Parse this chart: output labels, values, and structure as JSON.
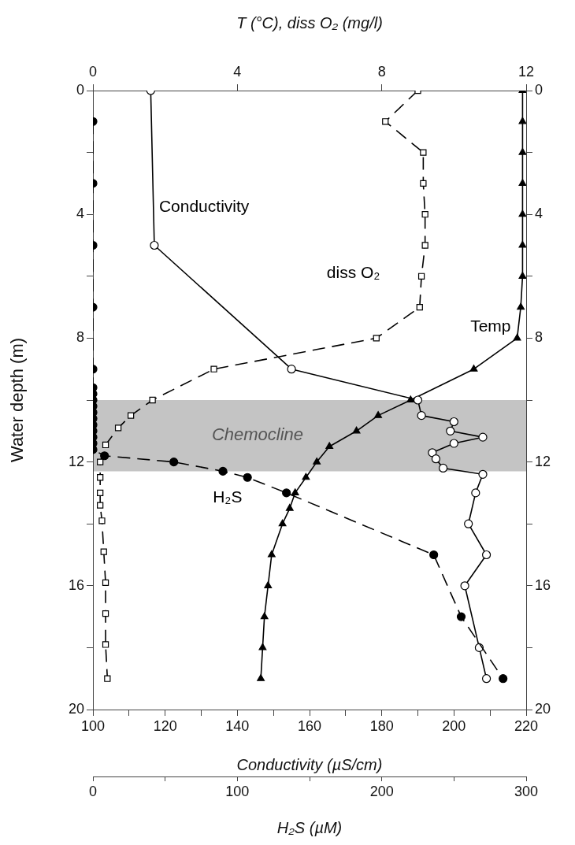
{
  "chart_data": [
    {
      "type": "line",
      "xlabel": "Conductivity (µS/cm)",
      "x2label": "T (°C), diss O₂ (mg/l)",
      "ylabel": "Water depth (m)",
      "xlim": [
        100,
        220
      ],
      "xticks": [
        100,
        {
          "value": 110,
          "label": null
        },
        120,
        {
          "value": 130,
          "label": null
        },
        140,
        {
          "value": 150,
          "label": null
        },
        160,
        {
          "value": 170,
          "label": null
        },
        180,
        {
          "value": 190,
          "label": null
        },
        200,
        {
          "value": 210,
          "label": null
        },
        220
      ],
      "x2lim": [
        0,
        12
      ],
      "x2ticks": [
        0,
        4,
        8,
        12
      ],
      "ylim": [
        20,
        0
      ],
      "yticks": [
        0,
        {
          "value": 2,
          "label": null
        },
        4,
        {
          "value": 6,
          "label": null
        },
        8,
        {
          "value": 10,
          "label": null
        },
        12,
        {
          "value": 14,
          "label": null
        },
        16,
        {
          "value": 18,
          "label": null
        },
        20
      ],
      "y2lim": [
        20,
        0
      ],
      "y2ticks": [
        0,
        {
          "value": 2,
          "label": null
        },
        4,
        {
          "value": 6,
          "label": null
        },
        8,
        {
          "value": 10,
          "label": null
        },
        12,
        {
          "value": 14,
          "label": null
        },
        16,
        {
          "value": 18,
          "label": null
        },
        20
      ],
      "grid": false,
      "legend": false,
      "bands": [
        {
          "axis": "y",
          "from": 10,
          "to": 12.3,
          "label": "Chemocline",
          "color": "#c4c4c4"
        }
      ],
      "series": [
        {
          "name": "Conductivity",
          "color": "#000000",
          "marker": "circle",
          "line_style": "solid",
          "x": [
            116,
            117,
            155,
            190,
            191,
            200,
            199,
            208,
            200,
            194,
            195,
            197,
            208,
            206,
            204,
            209,
            203,
            207,
            209
          ],
          "values": [
            0,
            5,
            9,
            10,
            10.5,
            10.7,
            11,
            11.2,
            11.4,
            11.7,
            11.9,
            12.2,
            12.4,
            13,
            14,
            15,
            16,
            18,
            19
          ]
        },
        {
          "name": "Temp",
          "color": "#000000",
          "marker": "triangle",
          "line_style": "solid",
          "axis": "x2",
          "x": [
            11.9,
            11.9,
            11.9,
            11.9,
            11.9,
            11.9,
            11.9,
            11.85,
            11.75,
            10.55,
            8.8,
            7.9,
            7.3,
            6.55,
            6.2,
            5.9,
            5.6,
            5.45,
            5.25,
            4.95,
            4.85,
            4.75,
            4.7,
            4.65
          ],
          "values": [
            0,
            1,
            2,
            3,
            4,
            5,
            6,
            7,
            8,
            9,
            10,
            10.5,
            11,
            11.5,
            12,
            12.5,
            13,
            13.5,
            14,
            15,
            16,
            17,
            18,
            19
          ]
        },
        {
          "name": "diss O₂",
          "color": "#000000",
          "marker": "square",
          "line_style": "dashed",
          "axis": "x2",
          "x": [
            9,
            8.1,
            9.15,
            9.15,
            9.2,
            9.2,
            9.1,
            9.05,
            7.85,
            3.35,
            1.65,
            1.05,
            0.7,
            0.35,
            0.2,
            0.2,
            0.2,
            0.2,
            0.25,
            0.3,
            0.35,
            0.35,
            0.35,
            0.4
          ],
          "values": [
            0,
            1,
            2,
            3,
            4,
            5,
            6,
            7,
            8,
            9,
            10,
            10.5,
            10.9,
            11.45,
            12,
            12.5,
            13,
            13.4,
            13.9,
            14.9,
            15.9,
            16.9,
            17.9,
            19
          ]
        }
      ]
    },
    {
      "type": "line",
      "xlabel": "H₂S (µM)",
      "xlim": [
        0,
        300
      ],
      "xticks": [
        0,
        {
          "value": 50,
          "label": null
        },
        100,
        {
          "value": 150,
          "label": null
        },
        200,
        {
          "value": 250,
          "label": null
        },
        300
      ],
      "ylim": [
        20,
        0
      ],
      "yticks": [
        0,
        {
          "value": 2,
          "label": null
        },
        4,
        {
          "value": 6,
          "label": null
        },
        8,
        {
          "value": 10,
          "label": null
        },
        12,
        {
          "value": 14,
          "label": null
        },
        16,
        {
          "value": 18,
          "label": null
        },
        20
      ],
      "tick_labels": "x",
      "grid": false,
      "legend": false,
      "series": [
        {
          "name": "H₂S",
          "color": "#000000",
          "marker": "circle",
          "line_style": "dashed",
          "x": [
            0,
            0,
            0,
            0,
            0,
            0,
            0,
            0,
            0,
            0,
            0,
            0,
            0,
            0,
            0,
            0,
            8,
            56,
            90,
            107,
            134,
            236,
            255,
            284
          ],
          "values": [
            1,
            3,
            5,
            7,
            9,
            9.6,
            9.8,
            10,
            10.2,
            10.4,
            10.6,
            10.8,
            11,
            11.2,
            11.4,
            11.6,
            11.8,
            12,
            12.3,
            12.5,
            13,
            15,
            17,
            19
          ]
        }
      ]
    }
  ]
}
